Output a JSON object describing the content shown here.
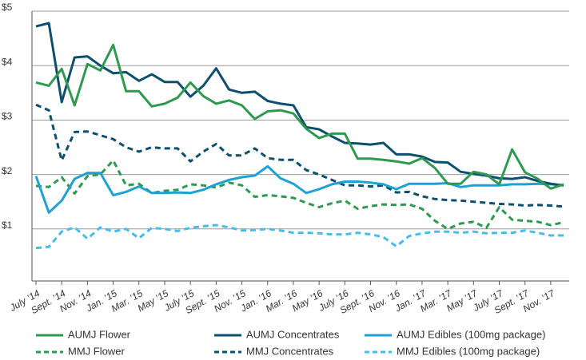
{
  "chart_data": {
    "type": "line",
    "categories": [
      "July ’14",
      null,
      "Sept. ’14",
      null,
      "Nov. ’14",
      null,
      "Jan. ’15",
      null,
      "Mar. ’15",
      null,
      "May ’15",
      null,
      "July ’15",
      null,
      "Sept. ’15",
      null,
      "Nov. ’15",
      null,
      "Jan. ’16",
      null,
      "Mar. ’16",
      null,
      "May ’16",
      null,
      "July ’16",
      null,
      "Sept. ’16",
      null,
      "Nov. ’16",
      null,
      "Jan. ’17",
      null,
      "Mar. ’17",
      null,
      "May ’17",
      null,
      "July ’17",
      null,
      "Sept. ’17",
      null,
      "Nov. ’17",
      null
    ],
    "ylim": [
      0,
      5
    ],
    "yticks": [
      {
        "value": 1,
        "label": "$1"
      },
      {
        "value": 2,
        "label": "$2"
      },
      {
        "value": 3,
        "label": "$3"
      },
      {
        "value": 4,
        "label": "$4"
      },
      {
        "value": 5,
        "label": "$5"
      }
    ],
    "grid": true,
    "legend": "bottom",
    "series": [
      {
        "name": "AUMJ Flower",
        "color": "#2e9a4f",
        "dashed": false,
        "values": [
          3.69,
          3.63,
          3.94,
          3.27,
          4.03,
          3.91,
          4.38,
          3.53,
          3.53,
          3.25,
          3.3,
          3.41,
          3.69,
          3.44,
          3.3,
          3.36,
          3.27,
          3.02,
          3.16,
          3.18,
          3.12,
          2.84,
          2.67,
          2.75,
          2.75,
          2.29,
          2.29,
          2.27,
          2.24,
          2.2,
          2.3,
          2.12,
          1.83,
          1.83,
          2.05,
          2.0,
          1.82,
          2.46,
          2.04,
          1.92,
          1.74,
          1.82
        ]
      },
      {
        "name": "AUMJ Concentrates",
        "color": "#0d4f6e",
        "dashed": false,
        "values": [
          4.72,
          4.78,
          3.33,
          4.15,
          4.17,
          4.0,
          3.86,
          3.88,
          3.72,
          3.84,
          3.7,
          3.7,
          3.43,
          3.63,
          3.95,
          3.56,
          3.5,
          3.52,
          3.35,
          3.3,
          3.27,
          2.87,
          2.83,
          2.7,
          2.58,
          2.57,
          2.55,
          2.58,
          2.37,
          2.37,
          2.33,
          2.23,
          2.22,
          2.05,
          2.01,
          1.98,
          1.93,
          1.92,
          1.95,
          1.88,
          1.83,
          1.8
        ]
      },
      {
        "name": "AUMJ Edibles (100mg package)",
        "color": "#1ea2d6",
        "dashed": false,
        "values": [
          1.97,
          1.3,
          1.52,
          1.92,
          2.03,
          2.03,
          1.62,
          1.68,
          1.78,
          1.66,
          1.66,
          1.67,
          1.66,
          1.72,
          1.82,
          1.9,
          1.95,
          1.98,
          2.15,
          1.93,
          1.83,
          1.66,
          1.73,
          1.82,
          1.87,
          1.87,
          1.85,
          1.82,
          1.73,
          1.83,
          1.83,
          1.83,
          1.84,
          1.77,
          1.8,
          1.8,
          1.8,
          1.82,
          1.82,
          1.83,
          1.82,
          1.8
        ]
      },
      {
        "name": "MMJ Flower",
        "color": "#2e9a4f",
        "dashed": true,
        "values": [
          1.79,
          1.77,
          1.95,
          1.65,
          1.97,
          2.0,
          2.26,
          1.8,
          1.83,
          1.66,
          1.7,
          1.72,
          1.82,
          1.8,
          1.76,
          1.85,
          1.8,
          1.59,
          1.62,
          1.6,
          1.57,
          1.48,
          1.4,
          1.47,
          1.52,
          1.37,
          1.42,
          1.45,
          1.44,
          1.45,
          1.37,
          1.15,
          1.0,
          1.1,
          1.13,
          1.02,
          1.4,
          1.17,
          1.15,
          1.13,
          1.07,
          1.12
        ]
      },
      {
        "name": "MMJ Concentrates",
        "color": "#0d4f6e",
        "dashed": true,
        "values": [
          3.28,
          3.18,
          2.26,
          2.78,
          2.79,
          2.72,
          2.65,
          2.5,
          2.42,
          2.5,
          2.48,
          2.48,
          2.24,
          2.42,
          2.56,
          2.35,
          2.35,
          2.48,
          2.3,
          2.27,
          2.27,
          2.08,
          2.0,
          1.9,
          1.8,
          1.8,
          1.78,
          1.8,
          1.67,
          1.68,
          1.6,
          1.55,
          1.53,
          1.52,
          1.5,
          1.48,
          1.46,
          1.45,
          1.43,
          1.44,
          1.43,
          1.41
        ]
      },
      {
        "name": "MMJ Edibles (100mg package)",
        "color": "#45bde9",
        "dashed": true,
        "values": [
          0.65,
          0.67,
          0.95,
          1.03,
          0.82,
          1.03,
          0.95,
          1.0,
          0.83,
          1.02,
          1.0,
          0.96,
          1.02,
          1.05,
          1.07,
          1.03,
          0.97,
          0.98,
          1.0,
          0.97,
          0.93,
          0.93,
          0.92,
          0.9,
          0.9,
          0.93,
          0.9,
          0.85,
          0.68,
          0.87,
          0.92,
          0.95,
          0.95,
          0.93,
          0.95,
          0.92,
          0.93,
          0.93,
          0.97,
          0.93,
          0.88,
          0.88
        ]
      }
    ]
  }
}
